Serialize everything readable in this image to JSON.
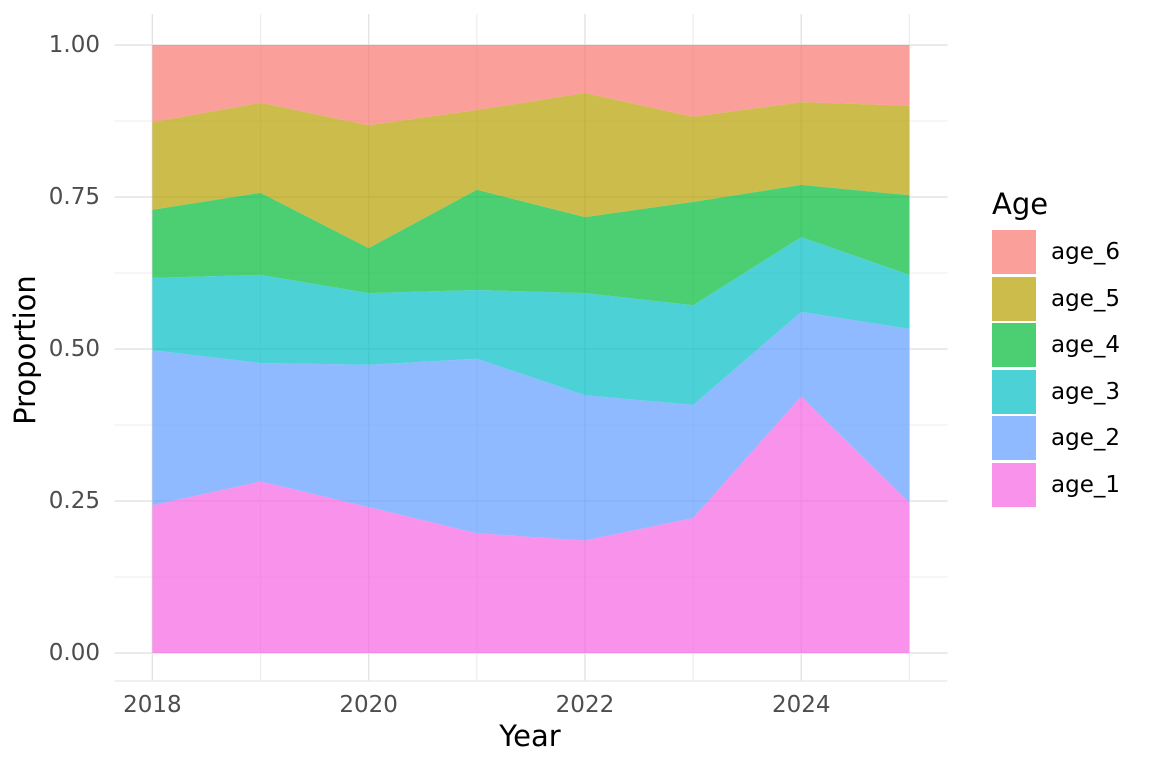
{
  "chart_data": {
    "type": "area",
    "stacked": true,
    "normalized": true,
    "title": "",
    "xlabel": "Year",
    "ylabel": "Proportion",
    "x": [
      2018,
      2019,
      2020,
      2021,
      2022,
      2023,
      2024,
      2025
    ],
    "xlim": [
      2018,
      2025
    ],
    "ylim": [
      0,
      1
    ],
    "grid": true,
    "fill_alpha": 0.7,
    "series": [
      {
        "name": "age_1",
        "color": "#F564E3",
        "values": [
          0.243,
          0.282,
          0.24,
          0.197,
          0.185,
          0.222,
          0.422,
          0.247
        ]
      },
      {
        "name": "age_2",
        "color": "#619CFF",
        "values": [
          0.255,
          0.195,
          0.234,
          0.287,
          0.239,
          0.186,
          0.139,
          0.286
        ]
      },
      {
        "name": "age_3",
        "color": "#00BFC4",
        "values": [
          0.119,
          0.145,
          0.118,
          0.113,
          0.168,
          0.164,
          0.123,
          0.089
        ]
      },
      {
        "name": "age_4",
        "color": "#00BA38",
        "values": [
          0.112,
          0.135,
          0.074,
          0.165,
          0.125,
          0.17,
          0.086,
          0.131
        ]
      },
      {
        "name": "age_5",
        "color": "#B79F00",
        "values": [
          0.144,
          0.148,
          0.202,
          0.131,
          0.204,
          0.14,
          0.136,
          0.147
        ]
      },
      {
        "name": "age_6",
        "color": "#F8766D",
        "values": [
          0.127,
          0.095,
          0.132,
          0.107,
          0.079,
          0.118,
          0.094,
          0.1
        ]
      }
    ],
    "x_ticks": [
      {
        "value": 2018,
        "label": "2018"
      },
      {
        "value": 2020,
        "label": "2020"
      },
      {
        "value": 2022,
        "label": "2022"
      },
      {
        "value": 2024,
        "label": "2024"
      }
    ],
    "y_ticks": [
      {
        "value": 0.0,
        "label": "0.00"
      },
      {
        "value": 0.25,
        "label": "0.25"
      },
      {
        "value": 0.5,
        "label": "0.50"
      },
      {
        "value": 0.75,
        "label": "0.75"
      },
      {
        "value": 1.0,
        "label": "1.00"
      }
    ],
    "x_minor": [
      2019,
      2021,
      2023,
      2025
    ],
    "y_minor": [
      0.125,
      0.375,
      0.625,
      0.875
    ],
    "legend": {
      "title": "Age",
      "position": "right",
      "entries": [
        "age_6",
        "age_5",
        "age_4",
        "age_3",
        "age_2",
        "age_1"
      ]
    },
    "style": {
      "background": "#FFFFFF",
      "tick_color": "#4D4D4D",
      "title_color": "#000000",
      "grid_major": "#E3E3E3",
      "grid_minor": "#EDEDED",
      "axis_line": "#E8E8E8"
    }
  }
}
